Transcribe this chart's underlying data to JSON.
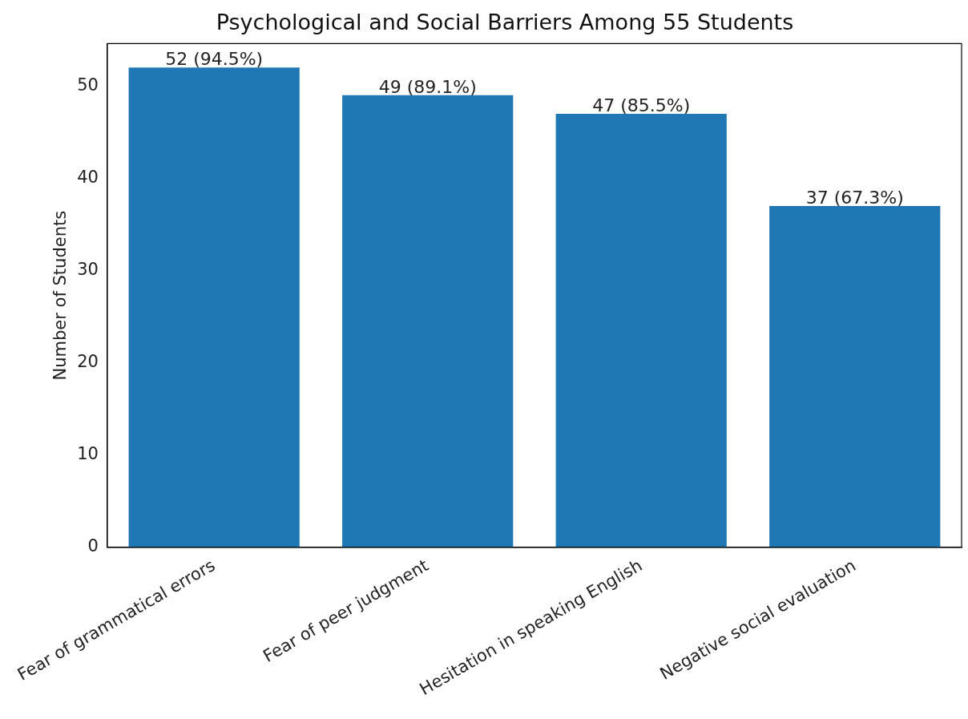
{
  "chart_data": {
    "type": "bar",
    "title": "Psychological and Social Barriers Among 55 Students",
    "ylabel": "Number of Students",
    "categories": [
      "Fear of grammatical errors",
      "Fear of peer judgment",
      "Hesitation in speaking English",
      "Negative social evaluation"
    ],
    "values": [
      52,
      49,
      47,
      37
    ],
    "color": "#1f77b4",
    "value_labels": [
      "52 (94.5%)",
      "49 (89.1%)",
      "47 (85.5%)",
      "37 (67.3%)"
    ],
    "ylim": [
      0,
      54.6
    ],
    "yticks": [
      0,
      10,
      20,
      30,
      40,
      50
    ],
    "grid": false,
    "legend": false
  }
}
